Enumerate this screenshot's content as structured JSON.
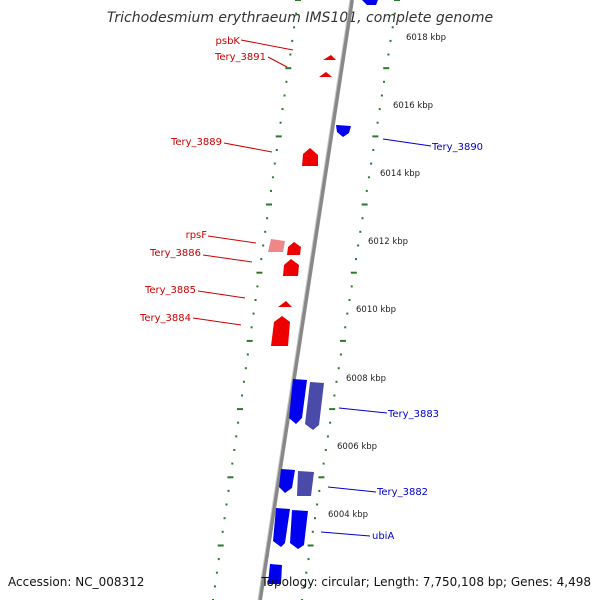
{
  "title": "Trichodesmium erythraeum IMS101, complete genome",
  "accession": "Accession: NC_008312",
  "summary": "Topology: circular; Length: 7,750,108 bp; Genes: 4,498",
  "colors": {
    "forward": "#ee0000",
    "forward_light": "#ee8888",
    "reverse": "#0000ee",
    "reverse_dark": "#4a4aa8",
    "backbone": "#888888",
    "tick": "#2a7a2a",
    "label_forward": "#cc0000",
    "label_reverse": "#0000cc"
  },
  "ticks": [
    "6018 kbp",
    "6016 kbp",
    "6014 kbp",
    "6012 kbp",
    "6010 kbp",
    "6008 kbp",
    "6006 kbp",
    "6004 kbp"
  ],
  "gene_labels": [
    {
      "text": "psbK",
      "strand": "forward"
    },
    {
      "text": "Tery_3891",
      "strand": "forward"
    },
    {
      "text": "Tery_3889",
      "strand": "forward"
    },
    {
      "text": "rpsF",
      "strand": "forward"
    },
    {
      "text": "Tery_3886",
      "strand": "forward"
    },
    {
      "text": "Tery_3885",
      "strand": "forward"
    },
    {
      "text": "Tery_3884",
      "strand": "forward"
    },
    {
      "text": "Tery_3890",
      "strand": "reverse"
    },
    {
      "text": "Tery_3883",
      "strand": "reverse"
    },
    {
      "text": "Tery_3882",
      "strand": "reverse"
    },
    {
      "text": "ubiA",
      "strand": "reverse"
    }
  ]
}
